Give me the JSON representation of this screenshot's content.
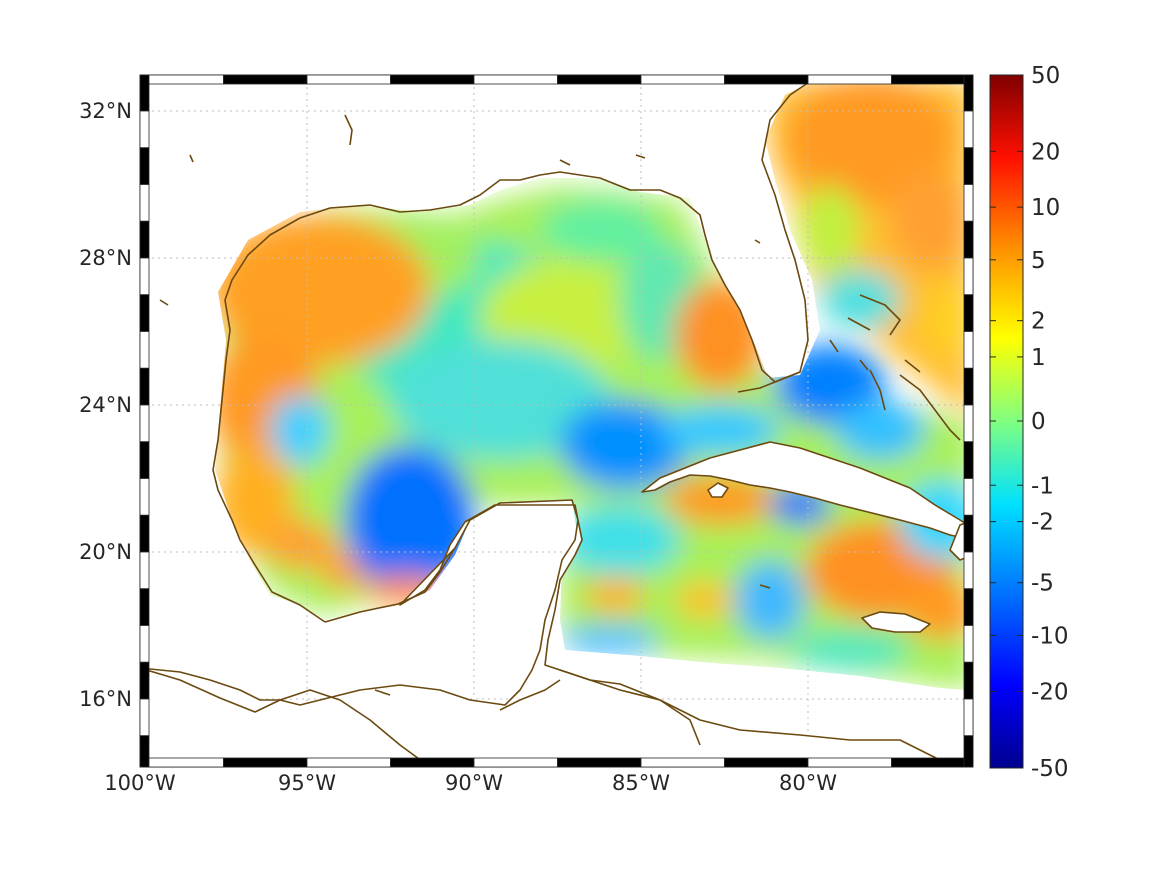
{
  "map": {
    "lon_range": [
      -100,
      -75
    ],
    "lat_range": [
      14.5,
      33
    ],
    "lon_ticks": [
      {
        "value": -100,
        "label": "100°W"
      },
      {
        "value": -95,
        "label": "95°W"
      },
      {
        "value": -90,
        "label": "90°W"
      },
      {
        "value": -85,
        "label": "85°W"
      },
      {
        "value": -80,
        "label": "80°W"
      }
    ],
    "lat_ticks": [
      {
        "value": 32,
        "label": "32°N"
      },
      {
        "value": 28,
        "label": "28°N"
      },
      {
        "value": 24,
        "label": "24°N"
      },
      {
        "value": 20,
        "label": "20°N"
      },
      {
        "value": 16,
        "label": "16°N"
      }
    ],
    "grid": true,
    "frame": "black-white dashed border",
    "coastline_color": "#6b4a10",
    "land_color": "#ffffff",
    "colormap": "jet",
    "field_regions": [
      {
        "name": "NW Gulf shelf",
        "level": "high",
        "value": 3
      },
      {
        "name": "Bay of Campeche",
        "level": "low",
        "value": -5
      },
      {
        "name": "Central Gulf",
        "level": "mixed",
        "value": 0
      },
      {
        "name": "West Florida shelf",
        "level": "high",
        "value": 3
      },
      {
        "name": "Yucatan Channel / NW Cuba",
        "level": "low",
        "value": -3
      },
      {
        "name": "Atlantic off SE US",
        "level": "high",
        "value": 4
      },
      {
        "name": "Bahamas",
        "level": "low",
        "value": -3
      },
      {
        "name": "Caribbean south of Cuba",
        "level": "high",
        "value": 3
      },
      {
        "name": "Western Caribbean",
        "level": "low",
        "value": -2
      }
    ]
  },
  "colorbar": {
    "ticks": [
      {
        "value": 50,
        "label": "50"
      },
      {
        "value": 20,
        "label": "20"
      },
      {
        "value": 10,
        "label": "10"
      },
      {
        "value": 5,
        "label": "5"
      },
      {
        "value": 2,
        "label": "2"
      },
      {
        "value": 1,
        "label": "1"
      },
      {
        "value": 0,
        "label": "0"
      },
      {
        "value": -1,
        "label": "-1"
      },
      {
        "value": -2,
        "label": "-2"
      },
      {
        "value": -5,
        "label": "-5"
      },
      {
        "value": -10,
        "label": "-10"
      },
      {
        "value": -20,
        "label": "-20"
      },
      {
        "value": -50,
        "label": "-50"
      }
    ],
    "colors": [
      "#00008f",
      "#0000ff",
      "#0080ff",
      "#00ffff",
      "#80ff80",
      "#ffff00",
      "#ff8000",
      "#ff0000",
      "#800000"
    ]
  }
}
